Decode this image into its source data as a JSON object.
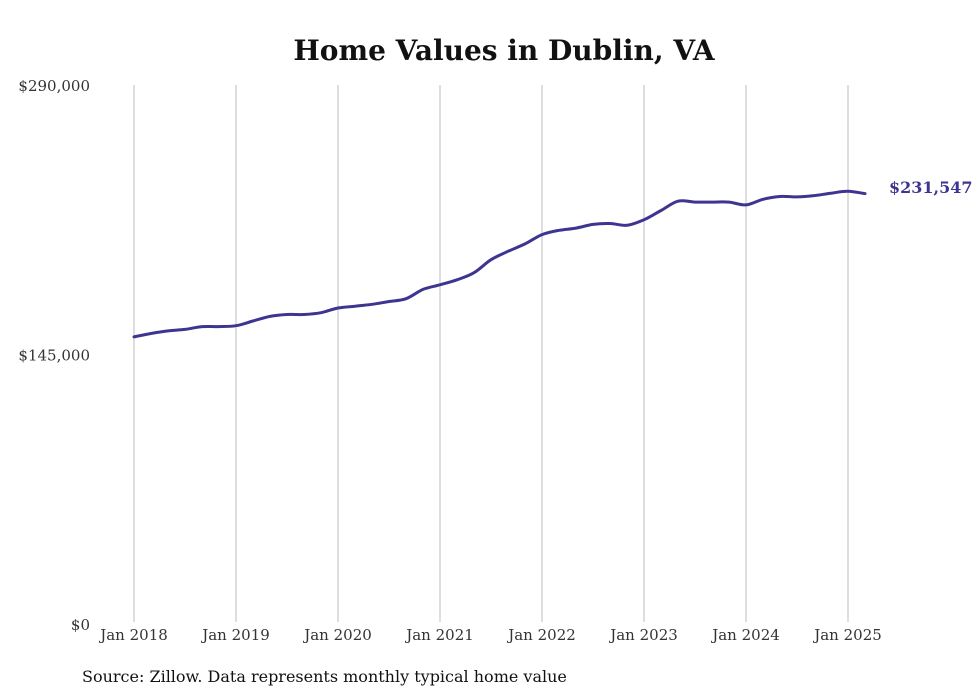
{
  "chart_data": {
    "type": "line",
    "title": "Home Values in Dublin, VA",
    "xlabel": "",
    "ylabel": "",
    "y_tick_labels": [
      "$0",
      "$145,000",
      "$290,000"
    ],
    "y_ticks": [
      0,
      145000,
      290000
    ],
    "ylim": [
      0,
      290000
    ],
    "x_tick_labels": [
      "Jan 2018",
      "Jan 2019",
      "Jan 2020",
      "Jan 2021",
      "Jan 2022",
      "Jan 2023",
      "Jan 2024",
      "Jan 2025"
    ],
    "x_ticks": [
      "2018-01",
      "2019-01",
      "2020-01",
      "2021-01",
      "2022-01",
      "2023-01",
      "2024-01",
      "2025-01"
    ],
    "xlim": [
      "2018-01",
      "2025-03"
    ],
    "grid": "vertical",
    "line_color": "#3d3590",
    "end_label": "$231,547",
    "series": [
      {
        "x": [
          "2018-01",
          "2018-03",
          "2018-05",
          "2018-07",
          "2018-09",
          "2018-11",
          "2019-01",
          "2019-03",
          "2019-05",
          "2019-07",
          "2019-09",
          "2019-11",
          "2020-01",
          "2020-03",
          "2020-05",
          "2020-07",
          "2020-09",
          "2020-11",
          "2021-01",
          "2021-03",
          "2021-05",
          "2021-07",
          "2021-09",
          "2021-11",
          "2022-01",
          "2022-03",
          "2022-05",
          "2022-07",
          "2022-09",
          "2022-11",
          "2023-01",
          "2023-03",
          "2023-05",
          "2023-07",
          "2023-09",
          "2023-11",
          "2024-01",
          "2024-03",
          "2024-05",
          "2024-07",
          "2024-09",
          "2024-11",
          "2025-01",
          "2025-03"
        ],
        "values": [
          154500,
          156300,
          157700,
          158500,
          160000,
          160000,
          160500,
          163000,
          165500,
          166500,
          166500,
          167500,
          170000,
          171000,
          172000,
          173500,
          175000,
          180000,
          182500,
          185200,
          189000,
          196000,
          200500,
          204500,
          209500,
          211800,
          213000,
          215000,
          215500,
          214500,
          217500,
          222500,
          227500,
          227000,
          227000,
          227000,
          225500,
          228500,
          230000,
          229800,
          230500,
          231800,
          232800,
          231547
        ]
      }
    ]
  },
  "source_text": "Source: Zillow. Data represents monthly typical home value"
}
